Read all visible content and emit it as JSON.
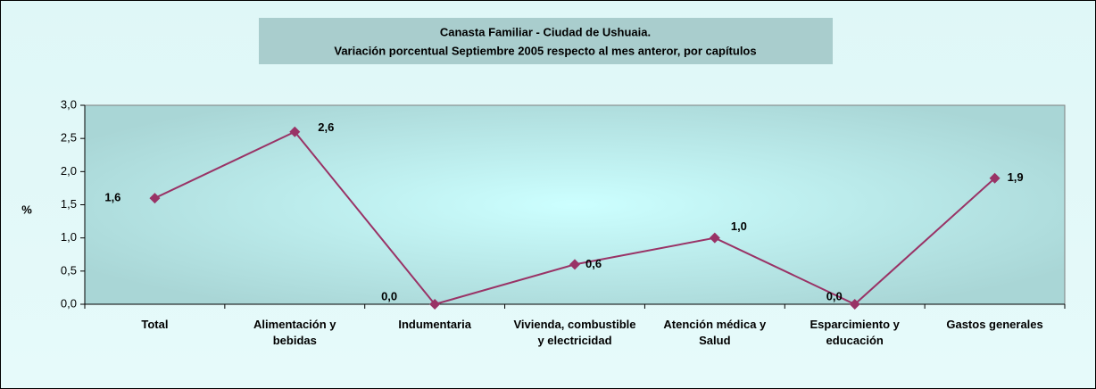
{
  "chart_data": {
    "type": "line",
    "title": "Canasta Familiar - Ciudad de Ushuaia.",
    "subtitle": "Variación porcentual Septiembre 2005 respecto al mes anteror, por capítulos",
    "y_label": "%",
    "categories": [
      "Total",
      "Alimentación y bebidas",
      "Indumentaria",
      "Vivienda, combustible y electricidad",
      "Atención médica y Salud",
      "Esparcimiento y educación",
      "Gastos generales"
    ],
    "series": [
      {
        "name": "Variación porcentual",
        "color": "#993366",
        "values": [
          1.6,
          2.6,
          0.0,
          0.6,
          1.0,
          0.0,
          1.9
        ],
        "value_labels": [
          "1,6",
          "2,6",
          "0,0",
          "0,6",
          "1,0",
          "0,0",
          "1,9"
        ]
      }
    ],
    "ylim": [
      0,
      3
    ],
    "yticks": [
      {
        "value": 0,
        "label": "0,0"
      },
      {
        "value": 0.5,
        "label": "0,5"
      },
      {
        "value": 1,
        "label": "1,0"
      },
      {
        "value": 1.5,
        "label": "1,5"
      },
      {
        "value": 2,
        "label": "2,0"
      },
      {
        "value": 2.5,
        "label": "2,5"
      },
      {
        "value": 3,
        "label": "3,0"
      }
    ]
  }
}
